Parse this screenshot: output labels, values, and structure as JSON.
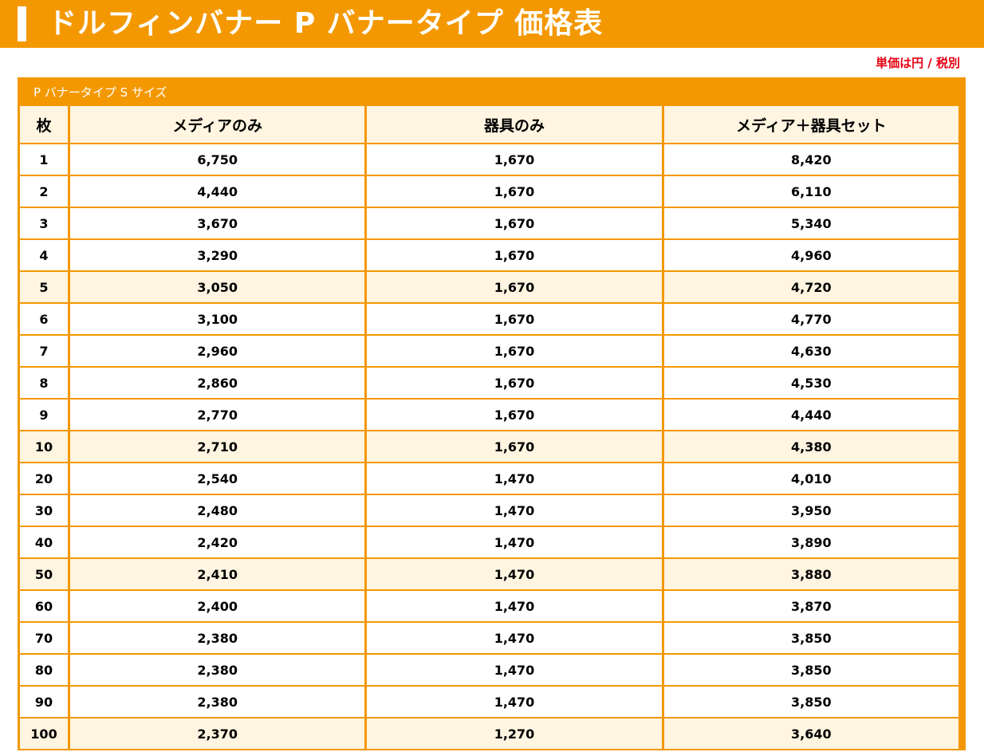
{
  "header": {
    "title": "ドルフィンバナー P バナータイプ 価格表"
  },
  "unit_note": "単価は円 / 税別",
  "table": {
    "caption": "P バナータイプ S サイズ",
    "columns": [
      "枚",
      "メディアのみ",
      "器具のみ",
      "メディア＋器具セット"
    ],
    "rows": [
      {
        "qty": "1",
        "media": "6,750",
        "fixture": "1,670",
        "set": "8,420",
        "highlight": false
      },
      {
        "qty": "2",
        "media": "4,440",
        "fixture": "1,670",
        "set": "6,110",
        "highlight": false
      },
      {
        "qty": "3",
        "media": "3,670",
        "fixture": "1,670",
        "set": "5,340",
        "highlight": false
      },
      {
        "qty": "4",
        "media": "3,290",
        "fixture": "1,670",
        "set": "4,960",
        "highlight": false
      },
      {
        "qty": "5",
        "media": "3,050",
        "fixture": "1,670",
        "set": "4,720",
        "highlight": true
      },
      {
        "qty": "6",
        "media": "3,100",
        "fixture": "1,670",
        "set": "4,770",
        "highlight": false
      },
      {
        "qty": "7",
        "media": "2,960",
        "fixture": "1,670",
        "set": "4,630",
        "highlight": false
      },
      {
        "qty": "8",
        "media": "2,860",
        "fixture": "1,670",
        "set": "4,530",
        "highlight": false
      },
      {
        "qty": "9",
        "media": "2,770",
        "fixture": "1,670",
        "set": "4,440",
        "highlight": false
      },
      {
        "qty": "10",
        "media": "2,710",
        "fixture": "1,670",
        "set": "4,380",
        "highlight": true
      },
      {
        "qty": "20",
        "media": "2,540",
        "fixture": "1,470",
        "set": "4,010",
        "highlight": false
      },
      {
        "qty": "30",
        "media": "2,480",
        "fixture": "1,470",
        "set": "3,950",
        "highlight": false
      },
      {
        "qty": "40",
        "media": "2,420",
        "fixture": "1,470",
        "set": "3,890",
        "highlight": false
      },
      {
        "qty": "50",
        "media": "2,410",
        "fixture": "1,470",
        "set": "3,880",
        "highlight": true
      },
      {
        "qty": "60",
        "media": "2,400",
        "fixture": "1,470",
        "set": "3,870",
        "highlight": false
      },
      {
        "qty": "70",
        "media": "2,380",
        "fixture": "1,470",
        "set": "3,850",
        "highlight": false
      },
      {
        "qty": "80",
        "media": "2,380",
        "fixture": "1,470",
        "set": "3,850",
        "highlight": false
      },
      {
        "qty": "90",
        "media": "2,380",
        "fixture": "1,470",
        "set": "3,850",
        "highlight": false
      },
      {
        "qty": "100",
        "media": "2,370",
        "fixture": "1,270",
        "set": "3,640",
        "highlight": true
      }
    ]
  },
  "colors": {
    "accent": "#f39800",
    "header_cell_bg": "#fff5e1",
    "highlight_row_bg": "#fff5e1",
    "note_red": "#e60012"
  }
}
